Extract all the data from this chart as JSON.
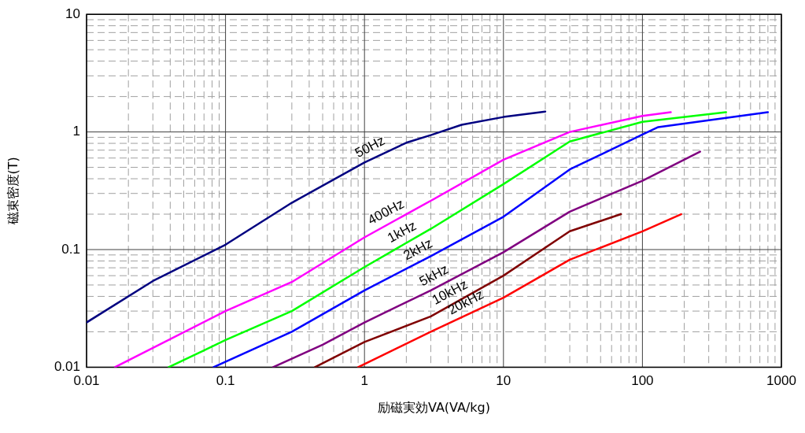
{
  "chart_data": {
    "type": "line",
    "xlabel": "励磁実効VA(VA/kg)",
    "ylabel": "磁束密度(T)",
    "log": "xy",
    "grid": true,
    "legend": false,
    "marker": "none",
    "line_style": "solid",
    "xlim": [
      0.01,
      1000
    ],
    "xticks": [
      0.01,
      0.1,
      1,
      10,
      100,
      1000
    ],
    "ylim": [
      0.01,
      10
    ],
    "yticks": [
      0.01,
      0.1,
      1,
      10
    ],
    "series": [
      {
        "name": "50Hz",
        "color": "#000080",
        "x": [
          0.01,
          0.03,
          0.1,
          0.3,
          1,
          2,
          3,
          5,
          10,
          20
        ],
        "values": [
          0.024,
          0.054,
          0.11,
          0.25,
          0.55,
          0.81,
          0.94,
          1.15,
          1.34,
          1.49
        ]
      },
      {
        "name": "400Hz",
        "color": "#ff00ff",
        "x": [
          0.016,
          0.1,
          0.3,
          1,
          3,
          10,
          30,
          100,
          160
        ],
        "values": [
          0.01,
          0.03,
          0.053,
          0.127,
          0.26,
          0.58,
          1.0,
          1.37,
          1.47
        ]
      },
      {
        "name": "1kHz",
        "color": "#00ff00",
        "x": [
          0.039,
          0.1,
          0.3,
          1,
          3,
          10,
          30,
          100,
          400
        ],
        "values": [
          0.01,
          0.017,
          0.03,
          0.071,
          0.15,
          0.36,
          0.83,
          1.22,
          1.47
        ]
      },
      {
        "name": "2kHz",
        "color": "#0000ff",
        "x": [
          0.082,
          0.3,
          1,
          3,
          10,
          30,
          100,
          130,
          800
        ],
        "values": [
          0.01,
          0.02,
          0.045,
          0.088,
          0.19,
          0.48,
          0.95,
          1.1,
          1.47
        ]
      },
      {
        "name": "5kHz",
        "color": "#800080",
        "x": [
          0.22,
          0.5,
          1,
          3,
          10,
          30,
          100,
          260
        ],
        "values": [
          0.01,
          0.0155,
          0.024,
          0.045,
          0.095,
          0.21,
          0.385,
          0.68
        ]
      },
      {
        "name": "10kHz",
        "color": "#800000",
        "x": [
          0.44,
          1,
          3,
          10,
          30,
          70
        ],
        "values": [
          0.01,
          0.0164,
          0.027,
          0.06,
          0.143,
          0.2
        ]
      },
      {
        "name": "20kHz",
        "color": "#ff0000",
        "x": [
          0.9,
          3,
          10,
          30,
          100,
          190
        ],
        "values": [
          0.01,
          0.02,
          0.039,
          0.082,
          0.143,
          0.2
        ]
      }
    ]
  }
}
